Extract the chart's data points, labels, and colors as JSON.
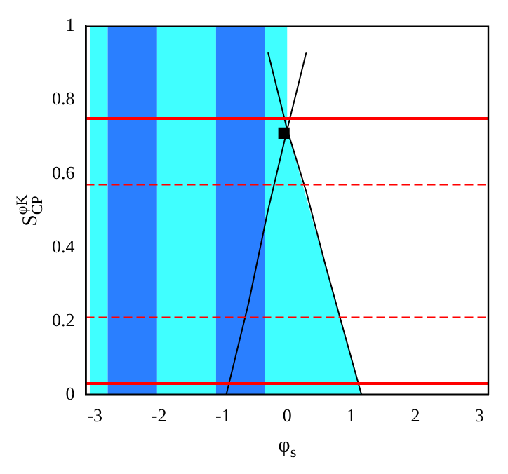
{
  "chart_data": {
    "type": "line",
    "xlabel": "φ$_{s}$",
    "ylabel": "S$_{CP}$$^{φK}$",
    "xlim": [
      -3.14,
      3.14
    ],
    "ylim": [
      0,
      1
    ],
    "xticks": [
      -3,
      -2,
      -1,
      0,
      1,
      2,
      3
    ],
    "yticks": [
      0,
      0.2,
      0.4,
      0.6,
      0.8,
      1
    ],
    "series": [
      {
        "type": "area",
        "color": "#40ffff",
        "x": [
          -0.35,
          0,
          0,
          1.16
        ],
        "values": [
          1,
          1,
          0.72,
          0
        ],
        "marker": "none"
      },
      {
        "type": "line",
        "color": "#000000",
        "x": [
          -0.95,
          -0.6,
          -0.3,
          0,
          0.3
        ],
        "values": [
          0,
          0.25,
          0.5,
          0.72,
          0.93
        ],
        "marker": "none"
      },
      {
        "type": "line",
        "color": "#000000",
        "x": [
          1.16,
          0.6,
          0.3,
          0,
          -0.3
        ],
        "values": [
          0,
          0.35,
          0.55,
          0.72,
          0.93
        ],
        "marker": "none"
      },
      {
        "type": "scatter",
        "color": "#000000",
        "x": [
          -0.05
        ],
        "values": [
          0.71
        ],
        "marker": "square"
      }
    ],
    "bands": [
      {
        "axis": "x",
        "from": -3.08,
        "to": -2.8,
        "color": "#40ffff"
      },
      {
        "axis": "x",
        "from": -2.8,
        "to": -2.03,
        "color": "#2a7fff"
      },
      {
        "axis": "x",
        "from": -2.03,
        "to": -1.11,
        "color": "#40ffff"
      },
      {
        "axis": "x",
        "from": -1.11,
        "to": -0.35,
        "color": "#2a7fff"
      }
    ],
    "ref_lines": [
      {
        "axis": "y",
        "value": 0.75,
        "color": "#ff0000",
        "line_style": "solid"
      },
      {
        "axis": "y",
        "value": 0.57,
        "color": "#ff0000",
        "line_style": "dashed"
      },
      {
        "axis": "y",
        "value": 0.21,
        "color": "#ff0000",
        "line_style": "dashed"
      },
      {
        "axis": "y",
        "value": 0.03,
        "color": "#ff0000",
        "line_style": "solid"
      }
    ]
  }
}
